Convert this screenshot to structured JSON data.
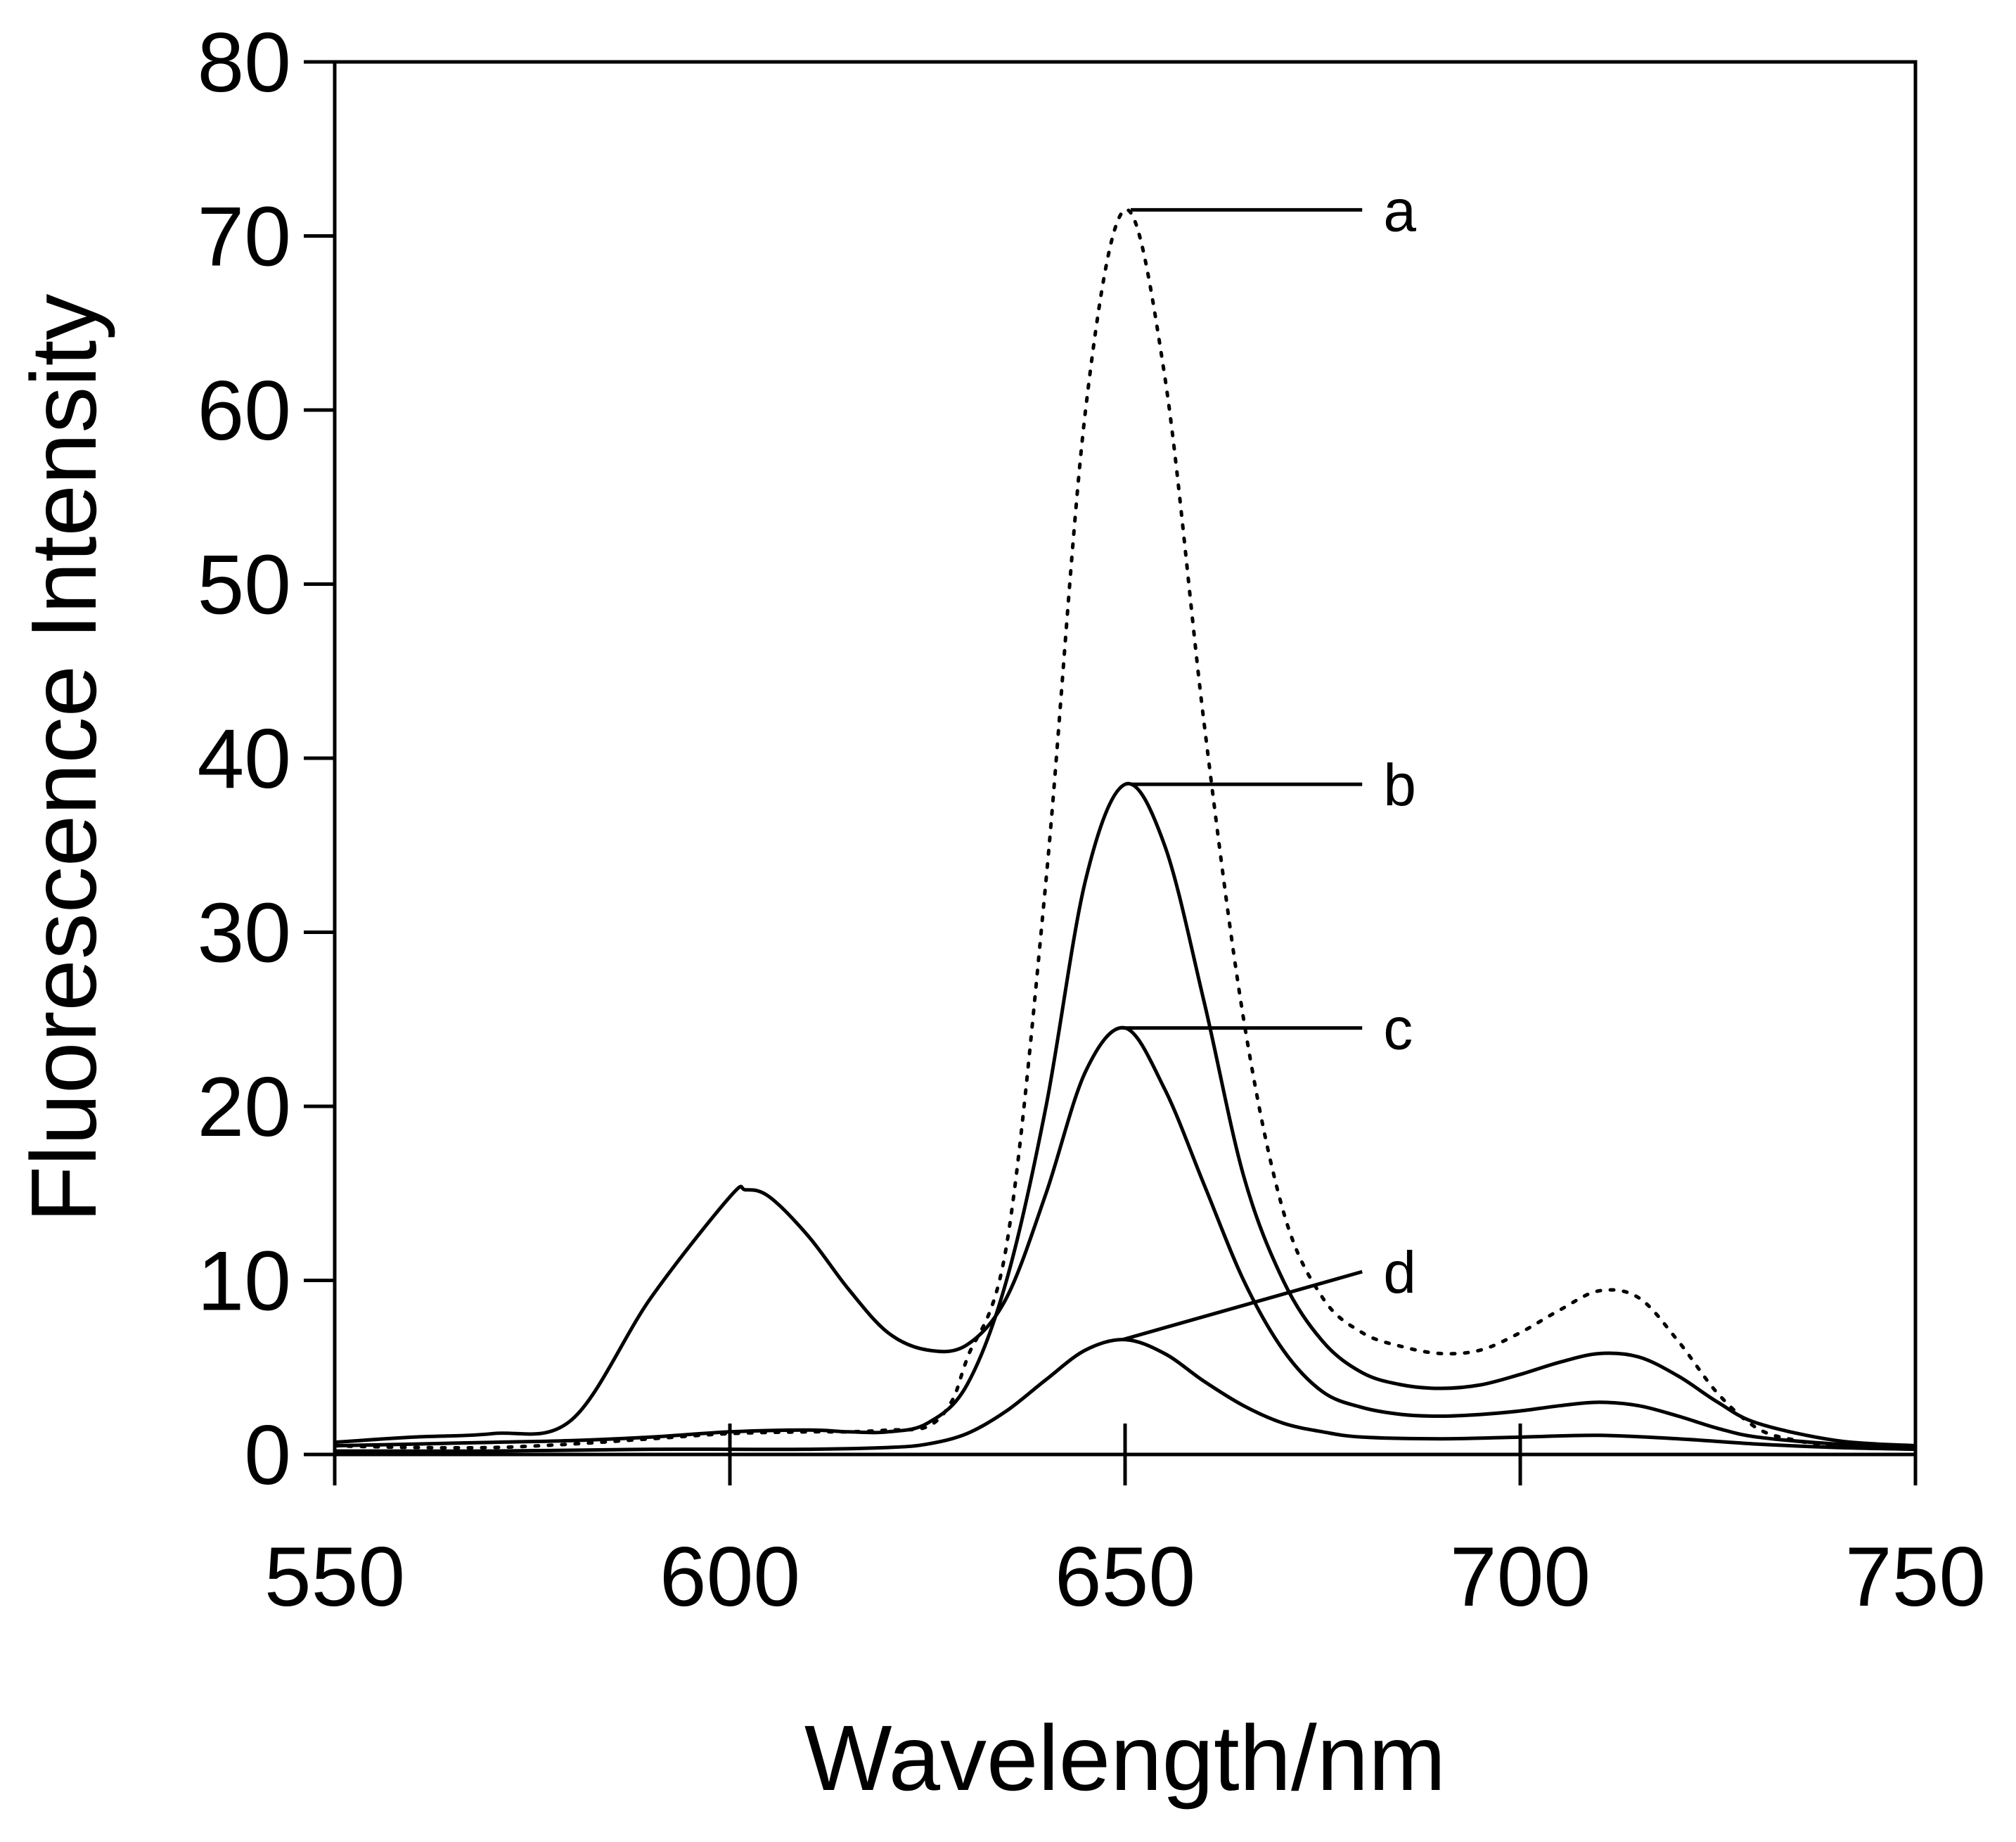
{
  "chart_data": {
    "type": "line",
    "title": "",
    "xlabel": "Wavelength/nm",
    "ylabel": "Fluorescence Intensity",
    "xlim": [
      550,
      750
    ],
    "ylim": [
      0,
      80
    ],
    "x_ticks": [
      550,
      600,
      650,
      700,
      750
    ],
    "y_ticks": [
      0,
      10,
      20,
      30,
      40,
      50,
      60,
      70,
      80
    ],
    "grid": false,
    "legend": "none",
    "series": [
      {
        "name": "a",
        "style": "dotted",
        "x": [
          550,
          560,
          570,
          580,
          590,
          600,
          610,
          615,
          620,
          625,
          628,
          630,
          635,
          640,
          645,
          650,
          655,
          660,
          665,
          670,
          675,
          680,
          685,
          690,
          695,
          700,
          705,
          710,
          715,
          720,
          725,
          730,
          735,
          740,
          750
        ],
        "y": [
          0.5,
          0.4,
          0.4,
          0.6,
          0.9,
          1.2,
          1.3,
          1.3,
          1.4,
          1.6,
          3.0,
          5.5,
          12,
          33,
          60,
          71.5,
          62,
          42,
          25,
          14,
          9.0,
          7.0,
          6.2,
          5.8,
          6.0,
          7.0,
          8.3,
          9.4,
          9.0,
          6.5,
          3.5,
          1.5,
          0.8,
          0.5,
          0.3
        ]
      },
      {
        "name": "b",
        "style": "solid",
        "x": [
          550,
          560,
          570,
          580,
          590,
          600,
          610,
          615,
          620,
          625,
          630,
          635,
          640,
          645,
          650,
          655,
          660,
          665,
          670,
          675,
          680,
          685,
          690,
          695,
          700,
          705,
          710,
          715,
          720,
          725,
          730,
          740,
          750
        ],
        "y": [
          0.5,
          0.6,
          0.7,
          0.8,
          1.0,
          1.3,
          1.4,
          1.3,
          1.3,
          1.8,
          4.0,
          10,
          20,
          33,
          38.5,
          35,
          26,
          16,
          10,
          6.5,
          4.7,
          4.0,
          3.8,
          4.0,
          4.6,
          5.3,
          5.8,
          5.6,
          4.5,
          3.0,
          1.8,
          0.8,
          0.5
        ]
      },
      {
        "name": "c",
        "style": "solid",
        "x": [
          550,
          560,
          570,
          580,
          590,
          600,
          602,
          605,
          610,
          615,
          620,
          625,
          630,
          635,
          640,
          645,
          650,
          655,
          660,
          665,
          670,
          675,
          680,
          685,
          690,
          695,
          700,
          705,
          710,
          715,
          720,
          725,
          730,
          740,
          750
        ],
        "y": [
          0.7,
          1.0,
          1.2,
          2.0,
          9.0,
          14.8,
          15.2,
          14.8,
          12.5,
          9.5,
          7.0,
          6.0,
          6.3,
          9.0,
          15,
          22,
          24.5,
          21,
          15.5,
          10,
          6.0,
          3.6,
          2.7,
          2.3,
          2.2,
          2.3,
          2.5,
          2.8,
          3.0,
          2.8,
          2.2,
          1.5,
          1.0,
          0.6,
          0.4
        ]
      },
      {
        "name": "d",
        "style": "solid",
        "x": [
          550,
          570,
          590,
          600,
          610,
          620,
          625,
          630,
          635,
          640,
          645,
          650,
          655,
          660,
          665,
          670,
          675,
          680,
          690,
          700,
          710,
          720,
          730,
          740,
          750
        ],
        "y": [
          0.2,
          0.2,
          0.3,
          0.3,
          0.3,
          0.4,
          0.6,
          1.2,
          2.5,
          4.3,
          6.0,
          6.6,
          5.8,
          4.2,
          2.8,
          1.8,
          1.3,
          1.0,
          0.9,
          1.0,
          1.1,
          0.9,
          0.6,
          0.4,
          0.3
        ]
      }
    ],
    "annotations": [
      {
        "text": "a",
        "peak": [
          650,
          71.5
        ],
        "label_at": [
          680,
          71.5
        ]
      },
      {
        "text": "b",
        "peak": [
          650,
          38.5
        ],
        "label_at": [
          680,
          38.5
        ]
      },
      {
        "text": "c",
        "peak": [
          649,
          24.5
        ],
        "label_at": [
          680,
          24.5
        ]
      },
      {
        "text": "d",
        "peak": [
          649,
          6.6
        ],
        "label_at": [
          680,
          10.5
        ]
      }
    ]
  }
}
